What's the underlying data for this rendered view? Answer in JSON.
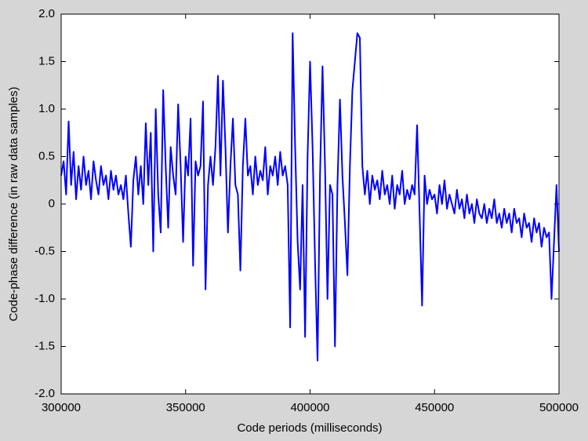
{
  "chart_data": {
    "type": "line",
    "xlabel": "Code periods (milliseconds)",
    "ylabel": "Code-phase difference (in raw data samples)",
    "color": "#0000ff",
    "xlim": [
      300000,
      500000
    ],
    "ylim": [
      -2,
      2
    ],
    "xticks": [
      300000,
      350000,
      400000,
      450000,
      500000
    ],
    "yticks": [
      {
        "value": -2,
        "label": "-2.0"
      },
      {
        "value": -1.5,
        "label": "-1.5"
      },
      {
        "value": -1,
        "label": "-1.0"
      },
      -0.5,
      0,
      0.5,
      {
        "value": 1,
        "label": "1.0"
      },
      1.5,
      {
        "value": 2,
        "label": "2.0"
      }
    ],
    "grid": false,
    "x": [
      300000,
      301000,
      302000,
      303000,
      304000,
      305000,
      306000,
      307000,
      308000,
      309000,
      310000,
      311000,
      312000,
      313000,
      314000,
      315000,
      316000,
      317000,
      318000,
      319000,
      320000,
      321000,
      322000,
      323000,
      324000,
      325000,
      326000,
      327000,
      328000,
      329000,
      330000,
      331000,
      332000,
      333000,
      334000,
      335000,
      336000,
      337000,
      338000,
      339000,
      340000,
      341000,
      342000,
      343000,
      344000,
      345000,
      346000,
      347000,
      348000,
      349000,
      350000,
      351000,
      352000,
      353000,
      354000,
      355000,
      356000,
      357000,
      358000,
      359000,
      360000,
      361000,
      362000,
      363000,
      364000,
      365000,
      366000,
      367000,
      368000,
      369000,
      370000,
      371000,
      372000,
      373000,
      374000,
      375000,
      376000,
      377000,
      378000,
      379000,
      380000,
      381000,
      382000,
      383000,
      384000,
      385000,
      386000,
      387000,
      388000,
      389000,
      390000,
      391000,
      392000,
      393000,
      394000,
      395000,
      396000,
      397000,
      398000,
      399000,
      400000,
      401000,
      402000,
      403000,
      404000,
      405000,
      406000,
      407000,
      408000,
      409000,
      410000,
      411000,
      412000,
      413000,
      414000,
      415000,
      416000,
      417000,
      418000,
      419000,
      420000,
      421000,
      422000,
      423000,
      424000,
      425000,
      426000,
      427000,
      428000,
      429000,
      430000,
      431000,
      432000,
      433000,
      434000,
      435000,
      436000,
      437000,
      438000,
      439000,
      440000,
      441000,
      442000,
      443000,
      444000,
      445000,
      446000,
      447000,
      448000,
      449000,
      450000,
      451000,
      452000,
      453000,
      454000,
      455000,
      456000,
      457000,
      458000,
      459000,
      460000,
      461000,
      462000,
      463000,
      464000,
      465000,
      466000,
      467000,
      468000,
      469000,
      470000,
      471000,
      472000,
      473000,
      474000,
      475000,
      476000,
      477000,
      478000,
      479000,
      480000,
      481000,
      482000,
      483000,
      484000,
      485000,
      486000,
      487000,
      488000,
      489000,
      490000,
      491000,
      492000,
      493000,
      494000,
      495000,
      496000,
      497000,
      498000,
      499000,
      500000
    ],
    "values": [
      0.3,
      0.45,
      0.1,
      0.87,
      0.2,
      0.55,
      0.05,
      0.4,
      0.15,
      0.5,
      0.2,
      0.35,
      0.05,
      0.45,
      0.25,
      0.1,
      0.4,
      0.2,
      0.3,
      0.05,
      0.35,
      0.15,
      0.3,
      0.1,
      0.2,
      0.05,
      0.3,
      -0.1,
      -0.45,
      0.25,
      0.5,
      0.1,
      0.4,
      0.0,
      0.85,
      0.2,
      0.75,
      -0.5,
      1.0,
      0.1,
      -0.3,
      1.2,
      0.4,
      -0.25,
      0.6,
      0.3,
      0.1,
      1.05,
      0.4,
      -0.4,
      0.5,
      0.3,
      0.9,
      -0.65,
      0.45,
      0.3,
      0.4,
      1.08,
      -0.9,
      0.2,
      0.5,
      0.2,
      0.6,
      1.35,
      0.3,
      1.3,
      0.6,
      -0.3,
      0.4,
      0.9,
      0.2,
      0.1,
      -0.7,
      0.4,
      0.9,
      0.3,
      0.4,
      0.1,
      0.5,
      0.2,
      0.35,
      0.25,
      0.6,
      0.1,
      0.4,
      0.3,
      0.5,
      0.2,
      0.55,
      0.3,
      0.4,
      0.2,
      -1.3,
      1.8,
      0.6,
      -0.4,
      -0.9,
      0.2,
      -1.4,
      0.5,
      1.5,
      0.6,
      -0.6,
      -1.65,
      0.3,
      1.45,
      0.4,
      -1.0,
      0.2,
      0.1,
      -1.5,
      0.2,
      1.1,
      0.3,
      -0.2,
      -0.75,
      0.4,
      1.2,
      1.5,
      1.8,
      1.75,
      0.4,
      0.1,
      0.35,
      0.0,
      0.3,
      0.15,
      0.25,
      0.05,
      0.35,
      0.1,
      0.2,
      0.0,
      0.3,
      -0.05,
      0.2,
      0.1,
      0.35,
      0.0,
      0.15,
      0.05,
      0.2,
      0.1,
      0.83,
      -0.1,
      -1.07,
      0.3,
      0.0,
      0.15,
      0.05,
      0.1,
      -0.1,
      0.2,
      0.0,
      0.25,
      -0.05,
      0.1,
      0.0,
      -0.1,
      0.15,
      -0.05,
      0.05,
      -0.15,
      0.1,
      -0.1,
      0.0,
      -0.2,
      0.05,
      -0.1,
      -0.15,
      0.0,
      -0.2,
      -0.05,
      -0.15,
      0.05,
      -0.2,
      -0.1,
      -0.25,
      -0.05,
      -0.2,
      -0.1,
      -0.3,
      -0.05,
      -0.2,
      -0.15,
      -0.35,
      -0.1,
      -0.25,
      -0.2,
      -0.4,
      -0.15,
      -0.3,
      -0.2,
      -0.45,
      -0.25,
      -0.35,
      -0.3,
      -1.0,
      -0.4,
      0.2,
      -0.5
    ]
  }
}
